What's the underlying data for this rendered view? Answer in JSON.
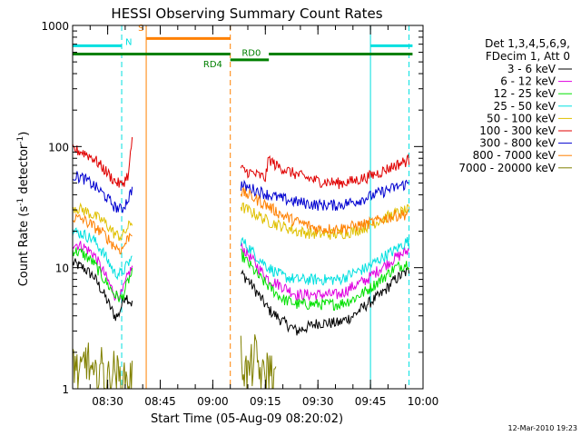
{
  "chart_data": {
    "type": "line",
    "title": "HESSI Observing Summary Count Rates",
    "xlabel": "Start Time (05-Aug-09 08:20:02)",
    "ylabel_main": "Count Rate (s",
    "ylabel_sup1": "-1",
    "ylabel_mid": " detector",
    "ylabel_sup2": "-1",
    "ylabel_end": ")",
    "yscale": "log",
    "ylim": [
      1,
      1000
    ],
    "xlim": [
      0,
      100
    ],
    "y_ticks": [
      {
        "value": 1,
        "label": "1"
      },
      {
        "value": 10,
        "label": "10"
      },
      {
        "value": 100,
        "label": "100"
      },
      {
        "value": 1000,
        "label": "1000"
      }
    ],
    "x_ticks": [
      {
        "value": 10,
        "label": "08:30"
      },
      {
        "value": 25,
        "label": "08:45"
      },
      {
        "value": 40,
        "label": "09:00"
      },
      {
        "value": 55,
        "label": "09:15"
      },
      {
        "value": 70,
        "label": "09:30"
      },
      {
        "value": 85,
        "label": "09:45"
      },
      {
        "value": 100,
        "label": "10:00"
      }
    ],
    "legend": {
      "header1": "Det 1,3,4,5,6,9,",
      "header2": "FDecim 1, Att 0",
      "placement": "right"
    },
    "series": [
      {
        "name": "3 - 6 keV",
        "color": "#000000",
        "seg1": [
          [
            0,
            11
          ],
          [
            3,
            10
          ],
          [
            6,
            8.5
          ],
          [
            9,
            6
          ],
          [
            12,
            4
          ],
          [
            13,
            4
          ],
          [
            15,
            6
          ],
          [
            17,
            5
          ]
        ],
        "seg2": [
          [
            48,
            9
          ],
          [
            50,
            8
          ],
          [
            53,
            6
          ],
          [
            56,
            4.5
          ],
          [
            60,
            3.6
          ],
          [
            64,
            3
          ],
          [
            70,
            3.5
          ],
          [
            76,
            3.5
          ],
          [
            80,
            4
          ],
          [
            84,
            5
          ],
          [
            88,
            6
          ],
          [
            92,
            8
          ],
          [
            96,
            9.5
          ]
        ]
      },
      {
        "name": "6 - 12 keV",
        "color": "#e000e0",
        "seg1": [
          [
            0,
            16
          ],
          [
            3,
            15
          ],
          [
            6,
            13
          ],
          [
            9,
            9
          ],
          [
            12,
            6
          ],
          [
            14,
            6
          ],
          [
            16,
            9
          ],
          [
            17,
            10
          ]
        ],
        "seg2": [
          [
            48,
            15
          ],
          [
            50,
            13
          ],
          [
            53,
            10
          ],
          [
            56,
            8
          ],
          [
            60,
            7
          ],
          [
            64,
            6
          ],
          [
            70,
            6
          ],
          [
            76,
            6
          ],
          [
            80,
            7
          ],
          [
            84,
            8
          ],
          [
            88,
            10
          ],
          [
            92,
            12
          ],
          [
            96,
            14
          ]
        ]
      },
      {
        "name": "12 - 25 keV",
        "color": "#00e000",
        "seg1": [
          [
            0,
            14
          ],
          [
            3,
            13
          ],
          [
            6,
            11
          ],
          [
            9,
            8
          ],
          [
            12,
            6
          ],
          [
            14,
            5.5
          ],
          [
            16,
            8
          ],
          [
            17,
            9
          ]
        ],
        "seg2": [
          [
            48,
            13
          ],
          [
            50,
            11
          ],
          [
            53,
            8.5
          ],
          [
            56,
            7
          ],
          [
            60,
            5.5
          ],
          [
            64,
            5
          ],
          [
            70,
            5
          ],
          [
            76,
            5
          ],
          [
            80,
            5.5
          ],
          [
            84,
            6.5
          ],
          [
            88,
            8
          ],
          [
            92,
            10
          ],
          [
            96,
            11
          ]
        ]
      },
      {
        "name": "25 - 50 keV",
        "color": "#00e0e0",
        "seg1": [
          [
            0,
            20
          ],
          [
            3,
            19
          ],
          [
            6,
            17
          ],
          [
            9,
            13
          ],
          [
            12,
            9
          ],
          [
            14,
            9
          ],
          [
            16,
            11
          ],
          [
            17,
            12
          ]
        ],
        "seg2": [
          [
            48,
            17
          ],
          [
            50,
            15
          ],
          [
            53,
            12
          ],
          [
            56,
            10
          ],
          [
            60,
            8.5
          ],
          [
            64,
            8
          ],
          [
            70,
            8
          ],
          [
            76,
            8
          ],
          [
            80,
            9
          ],
          [
            84,
            10
          ],
          [
            88,
            12
          ],
          [
            92,
            14
          ],
          [
            96,
            17
          ]
        ]
      },
      {
        "name": "50 - 100 keV",
        "color": "#e0c000",
        "seg1": [
          [
            0,
            32
          ],
          [
            3,
            30
          ],
          [
            6,
            27
          ],
          [
            9,
            24
          ],
          [
            12,
            19
          ],
          [
            14,
            18
          ],
          [
            16,
            22
          ],
          [
            17,
            24
          ]
        ],
        "seg2": [
          [
            48,
            32
          ],
          [
            50,
            30
          ],
          [
            53,
            27
          ],
          [
            56,
            24
          ],
          [
            60,
            22
          ],
          [
            64,
            20
          ],
          [
            70,
            19
          ],
          [
            76,
            19
          ],
          [
            80,
            20
          ],
          [
            84,
            22
          ],
          [
            88,
            25
          ],
          [
            92,
            28
          ],
          [
            96,
            30
          ]
        ]
      },
      {
        "name": "100 - 300 keV",
        "color": "#e00000",
        "seg1": [
          [
            0,
            95
          ],
          [
            3,
            90
          ],
          [
            6,
            80
          ],
          [
            9,
            65
          ],
          [
            12,
            52
          ],
          [
            14,
            48
          ],
          [
            16,
            60
          ],
          [
            17,
            120
          ]
        ],
        "seg2": [
          [
            48,
            65
          ],
          [
            50,
            62
          ],
          [
            53,
            58
          ],
          [
            55,
            55
          ],
          [
            56,
            80
          ],
          [
            58,
            70
          ],
          [
            62,
            62
          ],
          [
            66,
            56
          ],
          [
            70,
            52
          ],
          [
            76,
            50
          ],
          [
            80,
            52
          ],
          [
            84,
            56
          ],
          [
            88,
            62
          ],
          [
            92,
            70
          ],
          [
            96,
            78
          ]
        ]
      },
      {
        "name": "300 - 800 keV",
        "color": "#0000d0",
        "seg1": [
          [
            0,
            58
          ],
          [
            3,
            55
          ],
          [
            6,
            48
          ],
          [
            9,
            40
          ],
          [
            12,
            32
          ],
          [
            14,
            30
          ],
          [
            16,
            38
          ],
          [
            17,
            45
          ]
        ],
        "seg2": [
          [
            48,
            48
          ],
          [
            50,
            46
          ],
          [
            53,
            43
          ],
          [
            56,
            40
          ],
          [
            60,
            37
          ],
          [
            64,
            35
          ],
          [
            70,
            33
          ],
          [
            76,
            33
          ],
          [
            80,
            35
          ],
          [
            84,
            38
          ],
          [
            88,
            42
          ],
          [
            92,
            46
          ],
          [
            96,
            50
          ]
        ]
      },
      {
        "name": "800 - 7000 keV",
        "color": "#ff8000",
        "seg1": [
          [
            0,
            26
          ],
          [
            3,
            25
          ],
          [
            6,
            22
          ],
          [
            9,
            19
          ],
          [
            12,
            15
          ],
          [
            14,
            14
          ],
          [
            16,
            18
          ],
          [
            17,
            20
          ]
        ],
        "seg2": [
          [
            48,
            42
          ],
          [
            50,
            40
          ],
          [
            53,
            36
          ],
          [
            56,
            32
          ],
          [
            60,
            27
          ],
          [
            64,
            24
          ],
          [
            70,
            21
          ],
          [
            76,
            21
          ],
          [
            80,
            22
          ],
          [
            84,
            23
          ],
          [
            88,
            25
          ],
          [
            92,
            27
          ],
          [
            96,
            28
          ]
        ]
      },
      {
        "name": "7000 - 20000 keV",
        "color": "#808000",
        "seg1": [
          [
            0,
            2
          ],
          [
            2,
            1.2
          ],
          [
            4,
            2
          ],
          [
            6,
            1.1
          ],
          [
            8,
            1.6
          ],
          [
            10,
            1.2
          ],
          [
            12,
            1.5
          ],
          [
            14,
            1.1
          ],
          [
            17,
            1.3
          ]
        ],
        "seg2": [
          [
            48,
            2
          ],
          [
            50,
            1.3
          ],
          [
            52,
            2
          ],
          [
            54,
            1.2
          ],
          [
            56,
            1.6
          ],
          [
            58,
            1.1
          ]
        ]
      }
    ],
    "annotations": [
      {
        "label": "N",
        "color": "#00e0e0",
        "x": 16,
        "y": 690
      },
      {
        "label": "S",
        "color": "#ff8000",
        "x": 19.5,
        "y": 900
      },
      {
        "label": "RD0",
        "color": "#008000",
        "x": 51,
        "y": 560
      },
      {
        "label": "RD4",
        "color": "#008000",
        "x": 40,
        "y": 450
      }
    ],
    "flag_bars": [
      {
        "name": "saa-bar",
        "color": "#ff8000",
        "x0": 21,
        "x1": 45,
        "y": 780
      },
      {
        "name": "night-bar-left",
        "color": "#00e0e0",
        "x0": 0,
        "x1": 14,
        "y": 680
      },
      {
        "name": "night-bar-right",
        "color": "#00e0e0",
        "x0": 85,
        "x1": 97,
        "y": 680
      },
      {
        "name": "rd0-bar-left",
        "color": "#008000",
        "x0": 0,
        "x1": 45,
        "y": 580
      },
      {
        "name": "rd0-bar-right",
        "color": "#008000",
        "x0": 56,
        "x1": 97,
        "y": 580
      },
      {
        "name": "rd4-bar",
        "color": "#008000",
        "x0": 45,
        "x1": 56,
        "y": 520
      }
    ],
    "vlines": [
      {
        "x": 14,
        "color": "#00e0e0",
        "dash": true
      },
      {
        "x": 21,
        "color": "#ff8000",
        "dash": false
      },
      {
        "x": 45,
        "color": "#ff8000",
        "dash": true
      },
      {
        "x": 85,
        "color": "#00e0e0",
        "dash": false
      },
      {
        "x": 96,
        "color": "#00e0e0",
        "dash": true
      }
    ]
  },
  "footer": {
    "timestamp": "12-Mar-2010 19:23"
  }
}
